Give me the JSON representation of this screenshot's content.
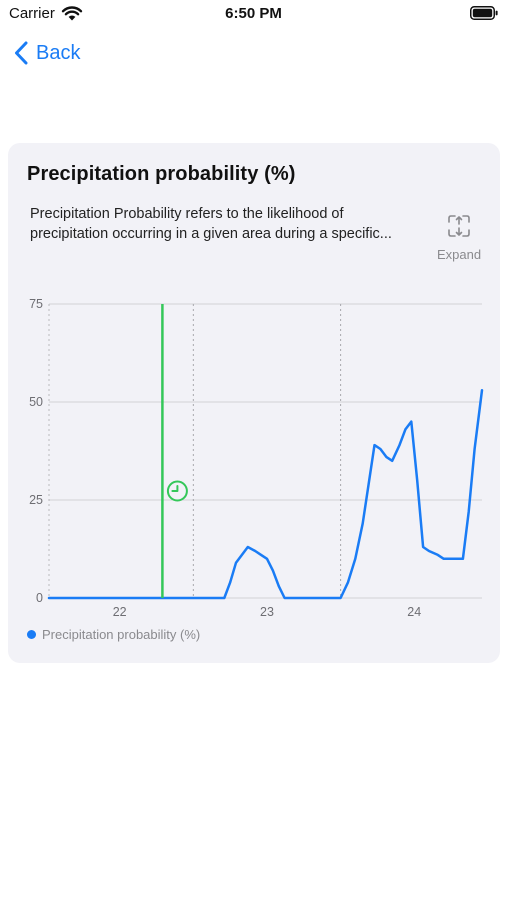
{
  "status_bar": {
    "carrier": "Carrier",
    "time": "6:50 PM"
  },
  "nav": {
    "back_label": "Back"
  },
  "card": {
    "title": "Precipitation probability (%)",
    "description": "Precipitation Probability refers to the likelihood of precipitation occurring in a given area during a specific...",
    "expand_label": "Expand"
  },
  "colors": {
    "accent": "#1a7cf5",
    "now_marker": "#34c759",
    "card_background": "#f2f2f7"
  },
  "chart_data": {
    "type": "line",
    "title": "Precipitation probability (%)",
    "ylim": [
      0,
      75
    ],
    "y_ticks": [
      0,
      25,
      50,
      75
    ],
    "xlim": [
      21.52,
      24.46
    ],
    "x_ticks": [
      22,
      23,
      24
    ],
    "day_dividers": [
      22.5,
      23.5
    ],
    "now_marker_x": 22.29,
    "grid": true,
    "legend_position": "bottom-left",
    "series": [
      {
        "name": "Precipitation probability (%)",
        "color": "#1a7cf5",
        "x": [
          21.52,
          22.71,
          22.75,
          22.79,
          22.87,
          22.92,
          22.96,
          23.0,
          23.04,
          23.08,
          23.12,
          23.5,
          23.55,
          23.6,
          23.65,
          23.69,
          23.73,
          23.77,
          23.81,
          23.85,
          23.9,
          23.94,
          23.98,
          24.02,
          24.06,
          24.1,
          24.16,
          24.2,
          24.24,
          24.29,
          24.33,
          24.37,
          24.41,
          24.46
        ],
        "values": [
          0,
          0,
          4,
          9,
          13,
          12,
          11,
          10,
          7,
          3,
          0,
          0,
          4,
          10,
          19,
          29,
          39,
          38,
          36,
          35,
          39,
          43,
          45,
          30,
          13,
          12,
          11,
          10,
          10,
          10,
          10,
          22,
          38,
          53
        ]
      }
    ]
  }
}
